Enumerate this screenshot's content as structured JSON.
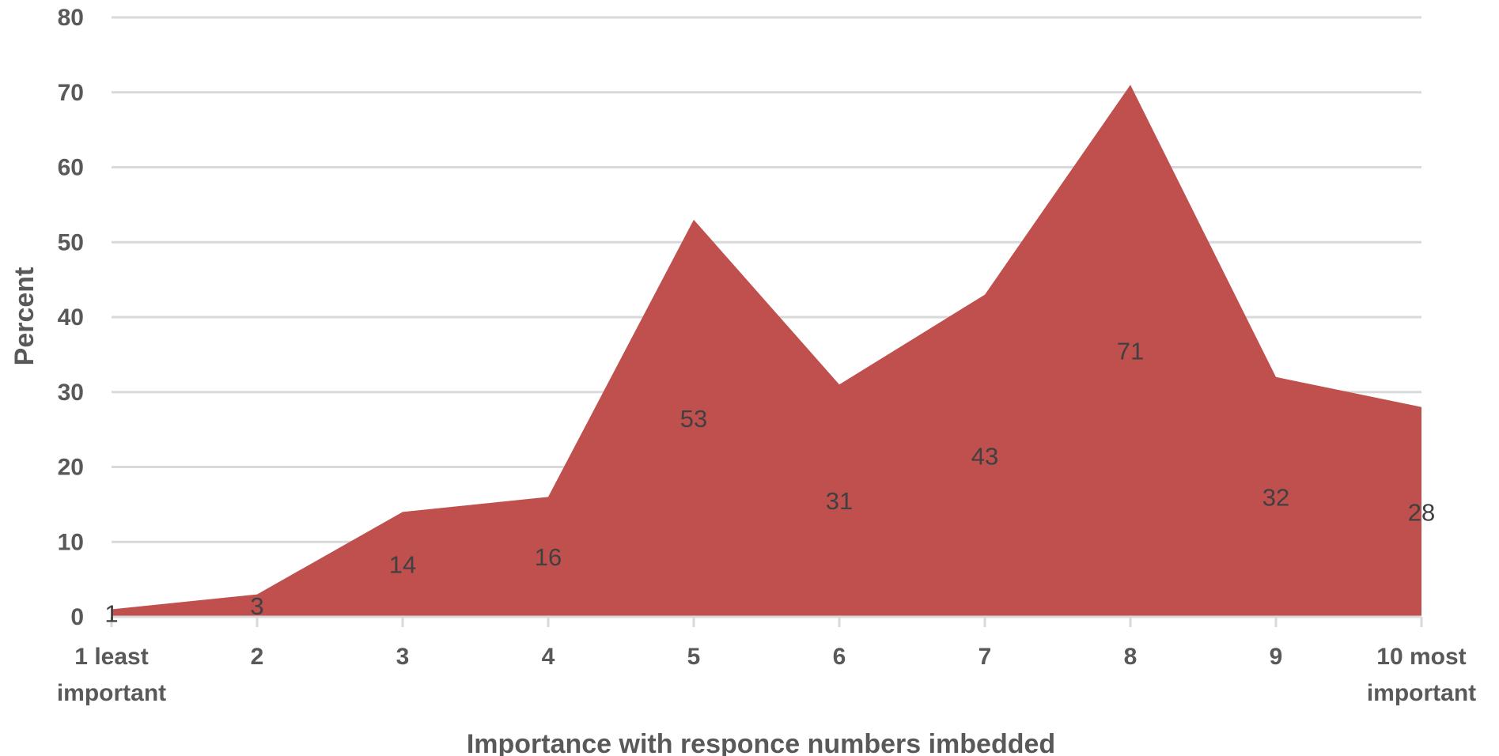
{
  "chart_data": {
    "type": "area",
    "title": "",
    "xlabel": "Importance with responce numbers imbedded",
    "ylabel": "Percent",
    "ylim": [
      0,
      80
    ],
    "yticks": [
      0,
      10,
      20,
      30,
      40,
      50,
      60,
      70,
      80
    ],
    "grid": true,
    "legend": "none",
    "categories": [
      [
        "1 least",
        "important"
      ],
      [
        "2"
      ],
      [
        "3"
      ],
      [
        "4"
      ],
      [
        "5"
      ],
      [
        "6"
      ],
      [
        "7"
      ],
      [
        "8"
      ],
      [
        "9"
      ],
      [
        "10 most",
        "important"
      ]
    ],
    "series": [
      {
        "values": [
          1,
          3,
          14,
          16,
          53,
          31,
          43,
          71,
          32,
          28
        ],
        "data_labels": [
          "1",
          "3",
          "14",
          "16",
          "53",
          "31",
          "43",
          "71",
          "32",
          "28"
        ],
        "color": "#c0504d"
      }
    ]
  }
}
